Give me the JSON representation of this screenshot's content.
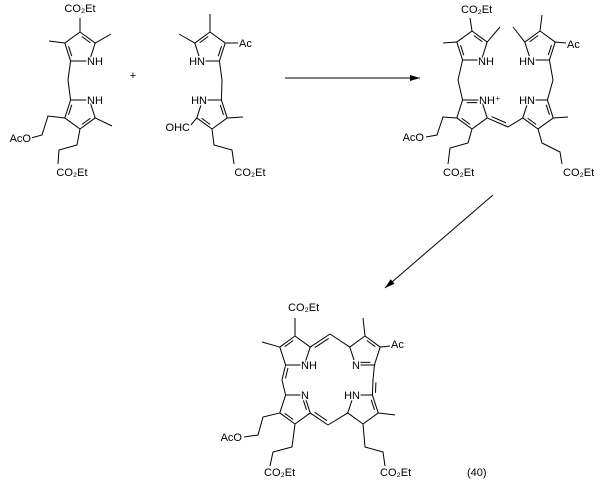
{
  "colors": {
    "ink": "#000000",
    "background": "#ffffff"
  },
  "reactant_1": {
    "top_ester": "CO₂Et",
    "nh_top": "NH",
    "nh_bottom": "NH",
    "aco": "AcO",
    "bottom_ester": "CO₂Et"
  },
  "plus": "+",
  "reactant_2": {
    "ac": "Ac",
    "hn_top": "HN",
    "hn_bottom": "HN",
    "ohc": "OHC",
    "bottom_ester": "CO₂Et"
  },
  "intermediate": {
    "top_ester": "CO₂Et",
    "nh_top_left": "NH",
    "hn_top_right": "HN",
    "ac": "Ac",
    "nh_plus": "NH⁺",
    "hn_bottom_right": "HN",
    "aco": "AcO",
    "ester_left": "CO₂Et",
    "ester_right": "CO₂Et"
  },
  "product": {
    "top_ester": "CO₂Et",
    "ac": "Ac",
    "nh": "NH",
    "n_top": "N",
    "n_bottom": "N",
    "hn": "HN",
    "aco": "AcO",
    "ester_left": "CO₂Et",
    "ester_right": "CO₂Et",
    "compound_number": "(40)"
  }
}
